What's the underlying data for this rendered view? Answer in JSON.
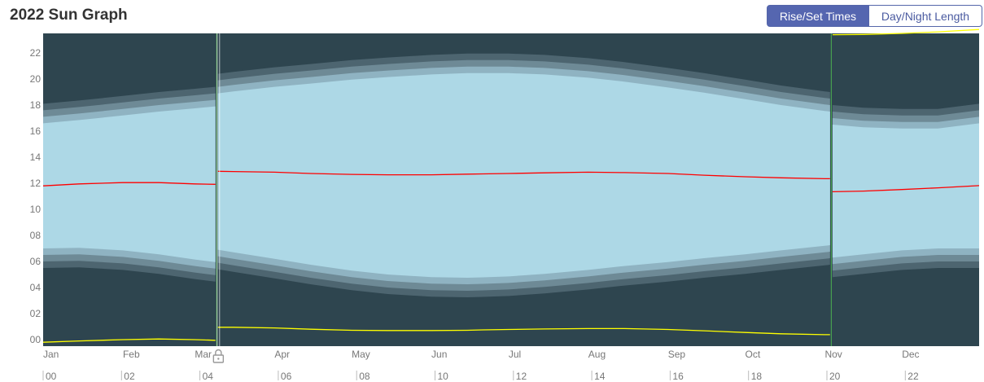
{
  "title": "2022 Sun Graph",
  "toggle": {
    "rise_set": "Rise/Set Times",
    "day_night": "Day/Night Length",
    "active": "rise_set"
  },
  "colors": {
    "night": "#2e454f",
    "astro": "#4d6570",
    "nautical": "#6e8a96",
    "civil": "#8fb3c2",
    "day": "#add8e6",
    "noon": "#ff0000",
    "midnight": "#ffff00",
    "dst_marker": "#4caf50"
  },
  "chart_data": {
    "type": "area",
    "title": "2022 Sun Graph",
    "ylabel": "",
    "xlabel": "",
    "ylim": [
      -0.5,
      23.5
    ],
    "y_ticks": [
      "00",
      "02",
      "04",
      "06",
      "08",
      "10",
      "12",
      "14",
      "16",
      "18",
      "20",
      "22"
    ],
    "month_labels": [
      "Jan",
      "Feb",
      "Mar",
      "Apr",
      "May",
      "Jun",
      "Jul",
      "Aug",
      "Sep",
      "Oct",
      "Nov",
      "Dec"
    ],
    "hour_labels": [
      "00",
      "02",
      "04",
      "06",
      "08",
      "10",
      "12",
      "14",
      "16",
      "18",
      "20",
      "22"
    ],
    "dst_start_day": 68,
    "dst_end_day": 307,
    "days": [
      1,
      15,
      32,
      46,
      60,
      68,
      69,
      75,
      91,
      105,
      121,
      135,
      152,
      166,
      172,
      182,
      196,
      213,
      227,
      244,
      258,
      274,
      288,
      305,
      307,
      308,
      320,
      335,
      349,
      365
    ],
    "series": [
      {
        "name": "sunrise",
        "values": [
          7.0,
          7.05,
          6.85,
          6.55,
          6.15,
          5.95,
          6.9,
          6.7,
          6.2,
          5.75,
          5.3,
          5.0,
          4.8,
          4.75,
          4.78,
          4.85,
          5.05,
          5.35,
          5.65,
          5.95,
          6.25,
          6.55,
          6.85,
          7.2,
          7.25,
          6.3,
          6.55,
          6.85,
          7.0,
          7.0
        ]
      },
      {
        "name": "sunset",
        "values": [
          16.6,
          16.85,
          17.2,
          17.5,
          17.75,
          17.9,
          18.9,
          19.05,
          19.4,
          19.65,
          19.95,
          20.15,
          20.35,
          20.45,
          20.45,
          20.45,
          20.35,
          20.1,
          19.8,
          19.35,
          18.95,
          18.45,
          18.0,
          17.55,
          17.5,
          16.5,
          16.3,
          16.2,
          16.2,
          16.6
        ]
      },
      {
        "name": "solar-noon",
        "values": [
          11.8,
          11.95,
          12.05,
          12.05,
          11.95,
          11.92,
          12.92,
          12.9,
          12.85,
          12.75,
          12.68,
          12.65,
          12.65,
          12.7,
          12.72,
          12.75,
          12.8,
          12.85,
          12.82,
          12.75,
          12.62,
          12.5,
          12.42,
          12.35,
          12.35,
          11.35,
          11.4,
          11.52,
          11.65,
          11.82
        ]
      },
      {
        "name": "solar-midnight",
        "values": [
          -0.2,
          -0.1,
          0.0,
          0.05,
          0.0,
          -0.05,
          0.95,
          0.95,
          0.9,
          0.8,
          0.72,
          0.7,
          0.7,
          0.72,
          0.75,
          0.78,
          0.82,
          0.85,
          0.85,
          0.78,
          0.68,
          0.55,
          0.45,
          0.38,
          0.38,
          23.4,
          23.42,
          23.5,
          23.62,
          23.8
        ]
      }
    ],
    "twilight_offsets_hours": {
      "civil": 0.5,
      "nautical": 1.0,
      "astronomical": 1.5
    }
  }
}
